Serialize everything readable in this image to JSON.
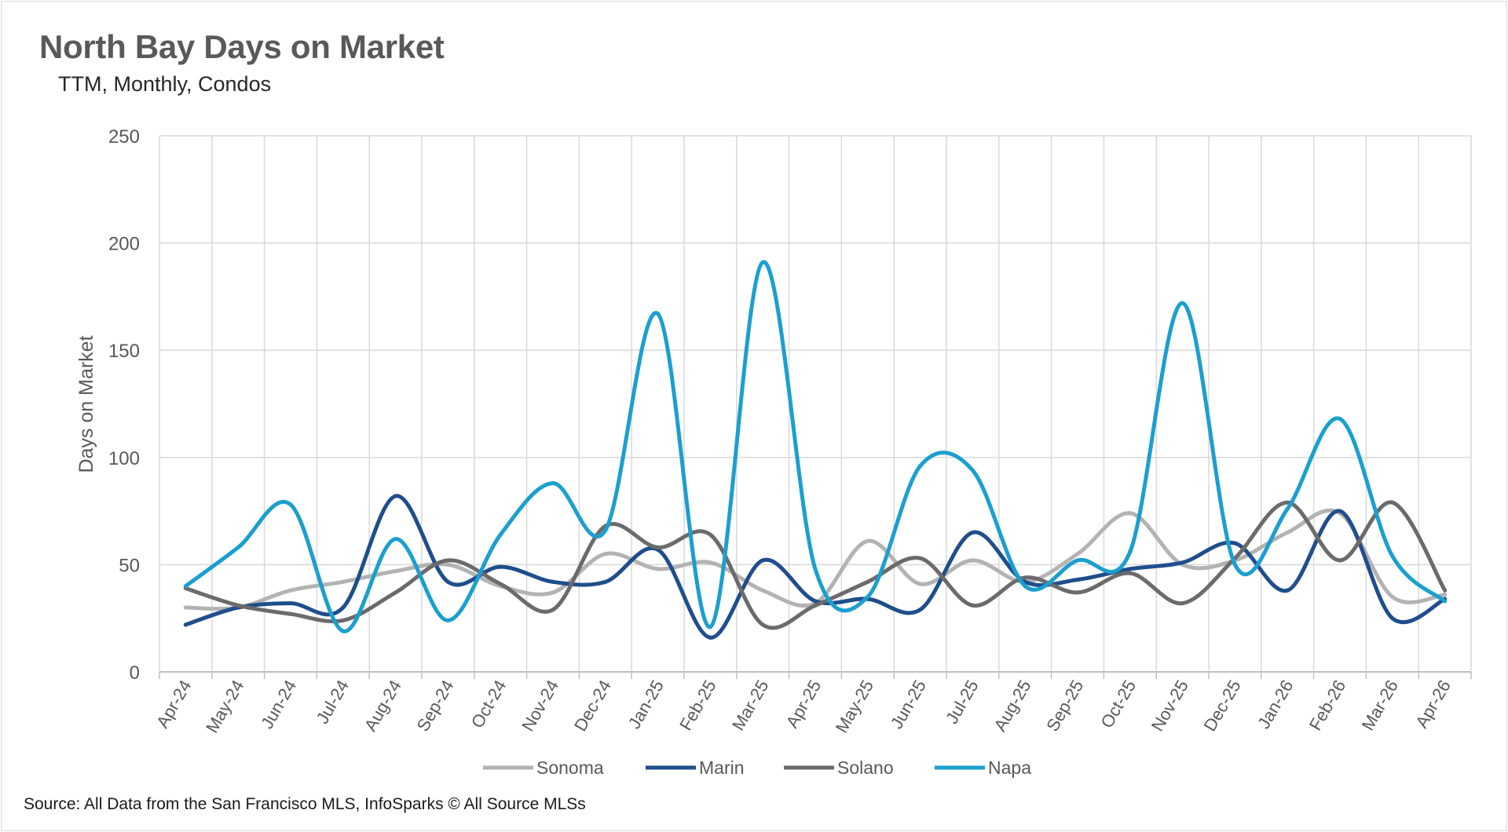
{
  "chart_data": {
    "type": "line",
    "title": "North Bay Days on Market",
    "subtitle": "TTM, Monthly, Condos",
    "xlabel": "",
    "ylabel": "Days on Market",
    "ylim": [
      0,
      250
    ],
    "yticks": [
      0,
      50,
      100,
      150,
      200,
      250
    ],
    "grid": true,
    "legend_position": "bottom",
    "smooth": true,
    "categories": [
      "Apr-24",
      "May-24",
      "Jun-24",
      "Jul-24",
      "Aug-24",
      "Sep-24",
      "Oct-24",
      "Nov-24",
      "Dec-24",
      "Jan-25",
      "Feb-25",
      "Mar-25",
      "Apr-25",
      "May-25",
      "Jun-25",
      "Jul-25",
      "Aug-25",
      "Sep-25",
      "Oct-25",
      "Nov-25",
      "Dec-25",
      "Jan-26",
      "Feb-26",
      "Mar-26",
      "Apr-26"
    ],
    "series": [
      {
        "name": "Sonoma",
        "color": "#b3b3b3",
        "values": [
          30,
          30,
          38,
          42,
          47,
          50,
          40,
          37,
          55,
          48,
          51,
          38,
          32,
          61,
          41,
          52,
          42,
          55,
          74,
          50,
          52,
          65,
          74,
          35,
          36
        ]
      },
      {
        "name": "Marin",
        "color": "#1f4e8c",
        "values": [
          22,
          30,
          32,
          30,
          82,
          42,
          49,
          42,
          42,
          57,
          16,
          52,
          33,
          34,
          29,
          65,
          42,
          43,
          48,
          51,
          60,
          38,
          75,
          25,
          34
        ]
      },
      {
        "name": "Solano",
        "color": "#6b6b6b",
        "values": [
          39,
          31,
          27,
          24,
          37,
          52,
          41,
          29,
          68,
          58,
          64,
          22,
          31,
          42,
          53,
          31,
          44,
          37,
          46,
          32,
          53,
          79,
          52,
          79,
          38
        ]
      },
      {
        "name": "Napa",
        "color": "#1b9fcf",
        "values": [
          40,
          58,
          78,
          19,
          62,
          24,
          64,
          88,
          66,
          167,
          21,
          191,
          48,
          35,
          96,
          94,
          40,
          52,
          56,
          172,
          50,
          76,
          118,
          54,
          33
        ]
      }
    ],
    "source": "Source: All Data from the San Francisco MLS, InfoSparks © All Source MLSs"
  }
}
